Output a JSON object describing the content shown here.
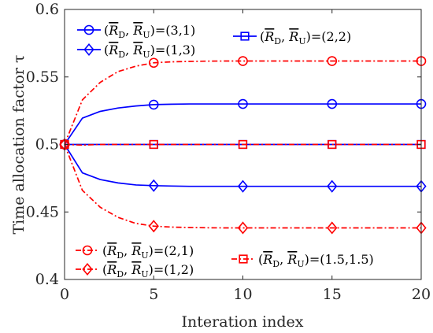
{
  "chart_data": {
    "type": "line",
    "xlabel": "Interation index",
    "ylabel": "Time allocation factor τ",
    "xlim": [
      0,
      20
    ],
    "ylim": [
      0.4,
      0.6
    ],
    "xticks": [
      "0",
      "5",
      "10",
      "15",
      "20"
    ],
    "yticks": [
      "0.4",
      "0.45",
      "0.5",
      "0.55",
      "0.6"
    ],
    "grid": false,
    "x": [
      0,
      1,
      2,
      3,
      4,
      5,
      6,
      7,
      8,
      9,
      10,
      11,
      12,
      13,
      14,
      15,
      16,
      17,
      18,
      19,
      20
    ],
    "marker_x": [
      0,
      5,
      10,
      15,
      20
    ],
    "series": [
      {
        "name": "(R̄D, R̄U)=(3,1)",
        "name_pair": "(3,1)",
        "color": "#0000ff",
        "dash": "solid",
        "marker": "circle",
        "values": [
          0.5,
          0.5195,
          0.5245,
          0.527,
          0.5285,
          0.5295,
          0.5298,
          0.53,
          0.53,
          0.53,
          0.53,
          0.53,
          0.53,
          0.53,
          0.53,
          0.53,
          0.53,
          0.53,
          0.53,
          0.53,
          0.53
        ]
      },
      {
        "name": "(R̄D, R̄U)=(1,3)",
        "name_pair": "(1,3)",
        "color": "#0000ff",
        "dash": "solid",
        "marker": "diamond",
        "values": [
          0.5,
          0.479,
          0.474,
          0.4715,
          0.47,
          0.4695,
          0.4692,
          0.469,
          0.469,
          0.469,
          0.469,
          0.469,
          0.469,
          0.469,
          0.469,
          0.469,
          0.469,
          0.469,
          0.469,
          0.469,
          0.469
        ]
      },
      {
        "name": "(R̄D, R̄U)=(2,2)",
        "name_pair": "(2,2)",
        "color": "#0000ff",
        "dash": "solid",
        "marker": "square",
        "values": [
          0.5,
          0.5,
          0.5,
          0.5,
          0.5,
          0.5,
          0.5,
          0.5,
          0.5,
          0.5,
          0.5,
          0.5,
          0.5,
          0.5,
          0.5,
          0.5,
          0.5,
          0.5,
          0.5,
          0.5,
          0.5
        ]
      },
      {
        "name": "(R̄D, R̄U)=(2,1)",
        "name_pair": "(2,1)",
        "color": "#ff0000",
        "dash": "dashdot",
        "marker": "circle",
        "values": [
          0.5,
          0.533,
          0.546,
          0.554,
          0.558,
          0.5605,
          0.5612,
          0.5615,
          0.5617,
          0.5618,
          0.5618,
          0.5618,
          0.5618,
          0.5618,
          0.5618,
          0.5618,
          0.5618,
          0.5618,
          0.5618,
          0.5618,
          0.5618
        ]
      },
      {
        "name": "(R̄D, R̄U)=(1,2)",
        "name_pair": "(1,2)",
        "color": "#ff0000",
        "dash": "dashdot",
        "marker": "diamond",
        "values": [
          0.5,
          0.466,
          0.4535,
          0.446,
          0.4415,
          0.4395,
          0.4388,
          0.4385,
          0.4383,
          0.4382,
          0.4382,
          0.4382,
          0.4382,
          0.4382,
          0.4382,
          0.4382,
          0.4382,
          0.4382,
          0.4382,
          0.4382,
          0.4382
        ]
      },
      {
        "name": "(R̄D, R̄U)=(1.5,1.5)",
        "name_pair": "(1.5,1.5)",
        "color": "#ff0000",
        "dash": "dashdot",
        "marker": "square",
        "values": [
          0.5,
          0.4995,
          0.5,
          0.5,
          0.5,
          0.5,
          0.5,
          0.5,
          0.5,
          0.5,
          0.5,
          0.5,
          0.5,
          0.5,
          0.5,
          0.5,
          0.5,
          0.5,
          0.5,
          0.5,
          0.5
        ]
      }
    ],
    "legends": [
      {
        "placement": "top-left",
        "series": [
          0,
          1
        ]
      },
      {
        "placement": "top-right",
        "series": [
          2
        ]
      },
      {
        "placement": "bottom-left",
        "series": [
          3,
          4
        ]
      },
      {
        "placement": "bottom-right",
        "series": [
          5
        ]
      }
    ]
  }
}
